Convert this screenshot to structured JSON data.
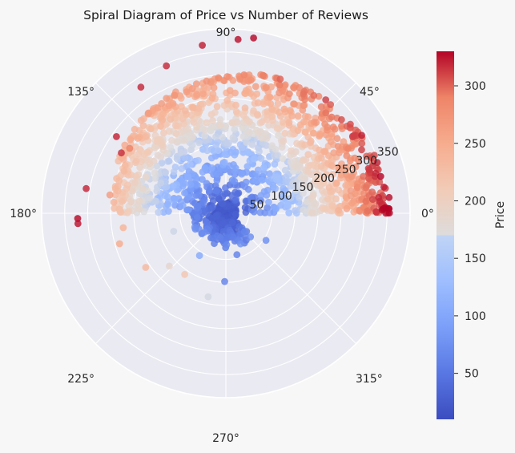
{
  "chart_data": {
    "type": "scatter",
    "projection": "polar",
    "title": "Spiral Diagram of Price vs Number of Reviews",
    "angle_tick_labels": [
      "0°",
      "45°",
      "90°",
      "135°",
      "180°",
      "225°",
      "270°",
      "315°"
    ],
    "radial_tick_labels": [
      "50",
      "100",
      "150",
      "200",
      "250",
      "300",
      "350"
    ],
    "rlim": [
      0,
      400
    ],
    "grid": true,
    "colorbar": {
      "label": "Price",
      "colormap": "coolwarm",
      "range": [
        10,
        330
      ],
      "tick_labels": [
        "50",
        "100",
        "150",
        "200",
        "250",
        "300"
      ],
      "tick_values": [
        50,
        100,
        150,
        200,
        250,
        300
      ]
    },
    "colors": {
      "background": "#f7f7f7",
      "axes_face": "#eaeaf2",
      "grid": "#ffffff"
    },
    "outlier_points": [
      {
        "theta_deg": 81,
        "r": 385,
        "price": 328
      },
      {
        "theta_deg": 86,
        "r": 378,
        "price": 326
      },
      {
        "theta_deg": 98,
        "r": 368,
        "price": 322
      },
      {
        "theta_deg": 112,
        "r": 345,
        "price": 318
      },
      {
        "theta_deg": 124,
        "r": 330,
        "price": 318
      },
      {
        "theta_deg": 127,
        "r": 270,
        "price": 250
      },
      {
        "theta_deg": 145,
        "r": 290,
        "price": 320
      },
      {
        "theta_deg": 146,
        "r": 252,
        "price": 290
      },
      {
        "theta_deg": 150,
        "r": 262,
        "price": 316
      },
      {
        "theta_deg": 158,
        "r": 222,
        "price": 212
      },
      {
        "theta_deg": 164,
        "r": 222,
        "price": 216
      },
      {
        "theta_deg": 170,
        "r": 308,
        "price": 320
      },
      {
        "theta_deg": 171,
        "r": 255,
        "price": 264
      },
      {
        "theta_deg": 182,
        "r": 322,
        "price": 328
      },
      {
        "theta_deg": 184,
        "r": 322,
        "price": 325
      },
      {
        "theta_deg": 188,
        "r": 225,
        "price": 240
      },
      {
        "theta_deg": 196,
        "r": 240,
        "price": 250
      },
      {
        "theta_deg": 199,
        "r": 120,
        "price": 160
      },
      {
        "theta_deg": 214,
        "r": 210,
        "price": 232
      },
      {
        "theta_deg": 223,
        "r": 168,
        "price": 185
      },
      {
        "theta_deg": 236,
        "r": 160,
        "price": 215
      },
      {
        "theta_deg": 238,
        "r": 108,
        "price": 105
      },
      {
        "theta_deg": 258,
        "r": 185,
        "price": 165
      },
      {
        "theta_deg": 269,
        "r": 148,
        "price": 62
      },
      {
        "theta_deg": 285,
        "r": 93,
        "price": 62
      },
      {
        "theta_deg": 302,
        "r": 76,
        "price": 55
      },
      {
        "theta_deg": 326,
        "r": 105,
        "price": 75
      }
    ]
  }
}
